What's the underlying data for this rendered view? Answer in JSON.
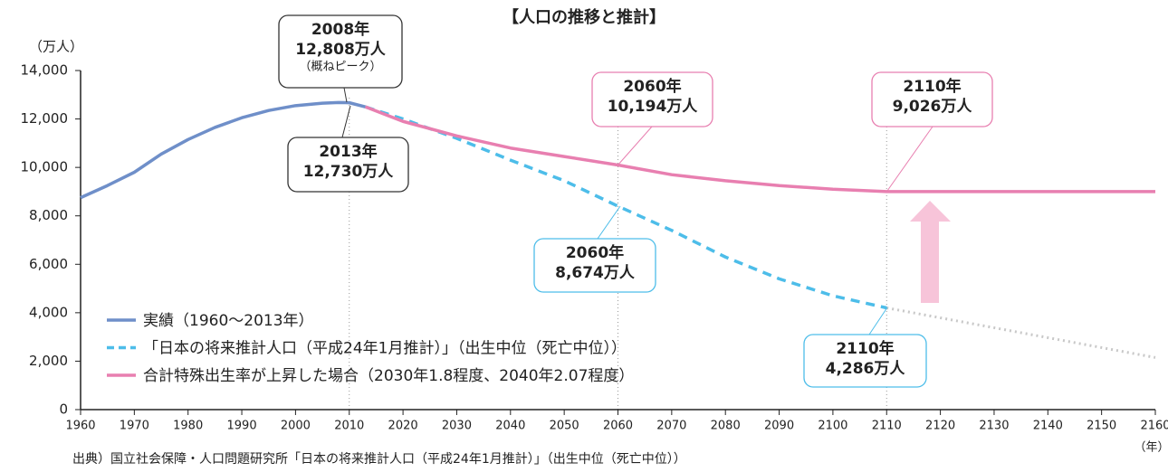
{
  "chart_data": {
    "type": "line",
    "title": "【人口の推移と推計】",
    "y_label": "（万人）",
    "x_label": "（年）",
    "source": "出典）国立社会保障・人口問題研究所「日本の将来推計人口（平成24年1月推計）」（出生中位（死亡中位））",
    "xlim": [
      1960,
      2160
    ],
    "xticks": [
      1960,
      1970,
      1980,
      1990,
      2000,
      2010,
      2020,
      2030,
      2040,
      2050,
      2060,
      2070,
      2080,
      2090,
      2100,
      2110,
      2120,
      2130,
      2140,
      2150,
      2160
    ],
    "ylim": [
      0,
      14000
    ],
    "yticks": [
      0,
      {
        "value": 2000,
        "label": "2,000"
      },
      {
        "value": 4000,
        "label": "4,000"
      },
      {
        "value": 6000,
        "label": "6,000"
      },
      {
        "value": 8000,
        "label": "8,000"
      },
      {
        "value": 10000,
        "label": "10,000"
      },
      {
        "value": 12000,
        "label": "12,000"
      },
      {
        "value": 14000,
        "label": "14,000"
      }
    ],
    "grid": false,
    "legend": "lower left",
    "series": [
      {
        "name": "実績（1960～2013年）",
        "color": "#6f8fc9",
        "dash": "solid",
        "x": [
          1960,
          1965,
          1970,
          1975,
          1980,
          1985,
          1990,
          1995,
          2000,
          2005,
          2008,
          2010,
          2013
        ],
        "values": [
          8750,
          9250,
          9800,
          10550,
          11150,
          11650,
          12050,
          12350,
          12550,
          12650,
          12680,
          12670,
          12500
        ]
      },
      {
        "name": "「日本の将来推計人口（平成24年1月推計）」（出生中位（死亡中位））",
        "color": "#4dbde9",
        "dash": "dashed",
        "x": [
          2013,
          2020,
          2030,
          2040,
          2050,
          2060,
          2070,
          2080,
          2090,
          2100,
          2110
        ],
        "values": [
          12500,
          12000,
          11200,
          10300,
          9450,
          8400,
          7400,
          6300,
          5400,
          4700,
          4200
        ]
      },
      {
        "name": "合計特殊出生率が上昇した場合（2030年1.8程度、2040年2.07程度）",
        "color": "#e87fb0",
        "dash": "solid",
        "x": [
          2013,
          2020,
          2030,
          2040,
          2050,
          2060,
          2070,
          2080,
          2090,
          2100,
          2110,
          2120,
          2130,
          2140,
          2150,
          2160
        ],
        "values": [
          12500,
          11900,
          11300,
          10800,
          10450,
          10100,
          9700,
          9450,
          9250,
          9100,
          9000,
          9000,
          9000,
          9000,
          9000,
          9000
        ]
      },
      {
        "color": "#c8c8c8",
        "dash": "dotted",
        "x": [
          2110,
          2160
        ],
        "values": [
          4200,
          2150
        ]
      }
    ],
    "annotations": [
      {
        "lines": [
          "2008年",
          "12,808万人",
          "（概ねピーク）"
        ],
        "color": "#333333"
      },
      {
        "lines": [
          "2013年",
          "12,730万人"
        ],
        "color": "#333333"
      },
      {
        "lines": [
          "2060年",
          "10,194万人"
        ],
        "color": "#e87fb0"
      },
      {
        "lines": [
          "2110年",
          "9,026万人"
        ],
        "color": "#e87fb0"
      },
      {
        "lines": [
          "2060年",
          "8,674万人"
        ],
        "color": "#4dbde9"
      },
      {
        "lines": [
          "2110年",
          "4,286万人"
        ],
        "color": "#4dbde9"
      }
    ]
  }
}
